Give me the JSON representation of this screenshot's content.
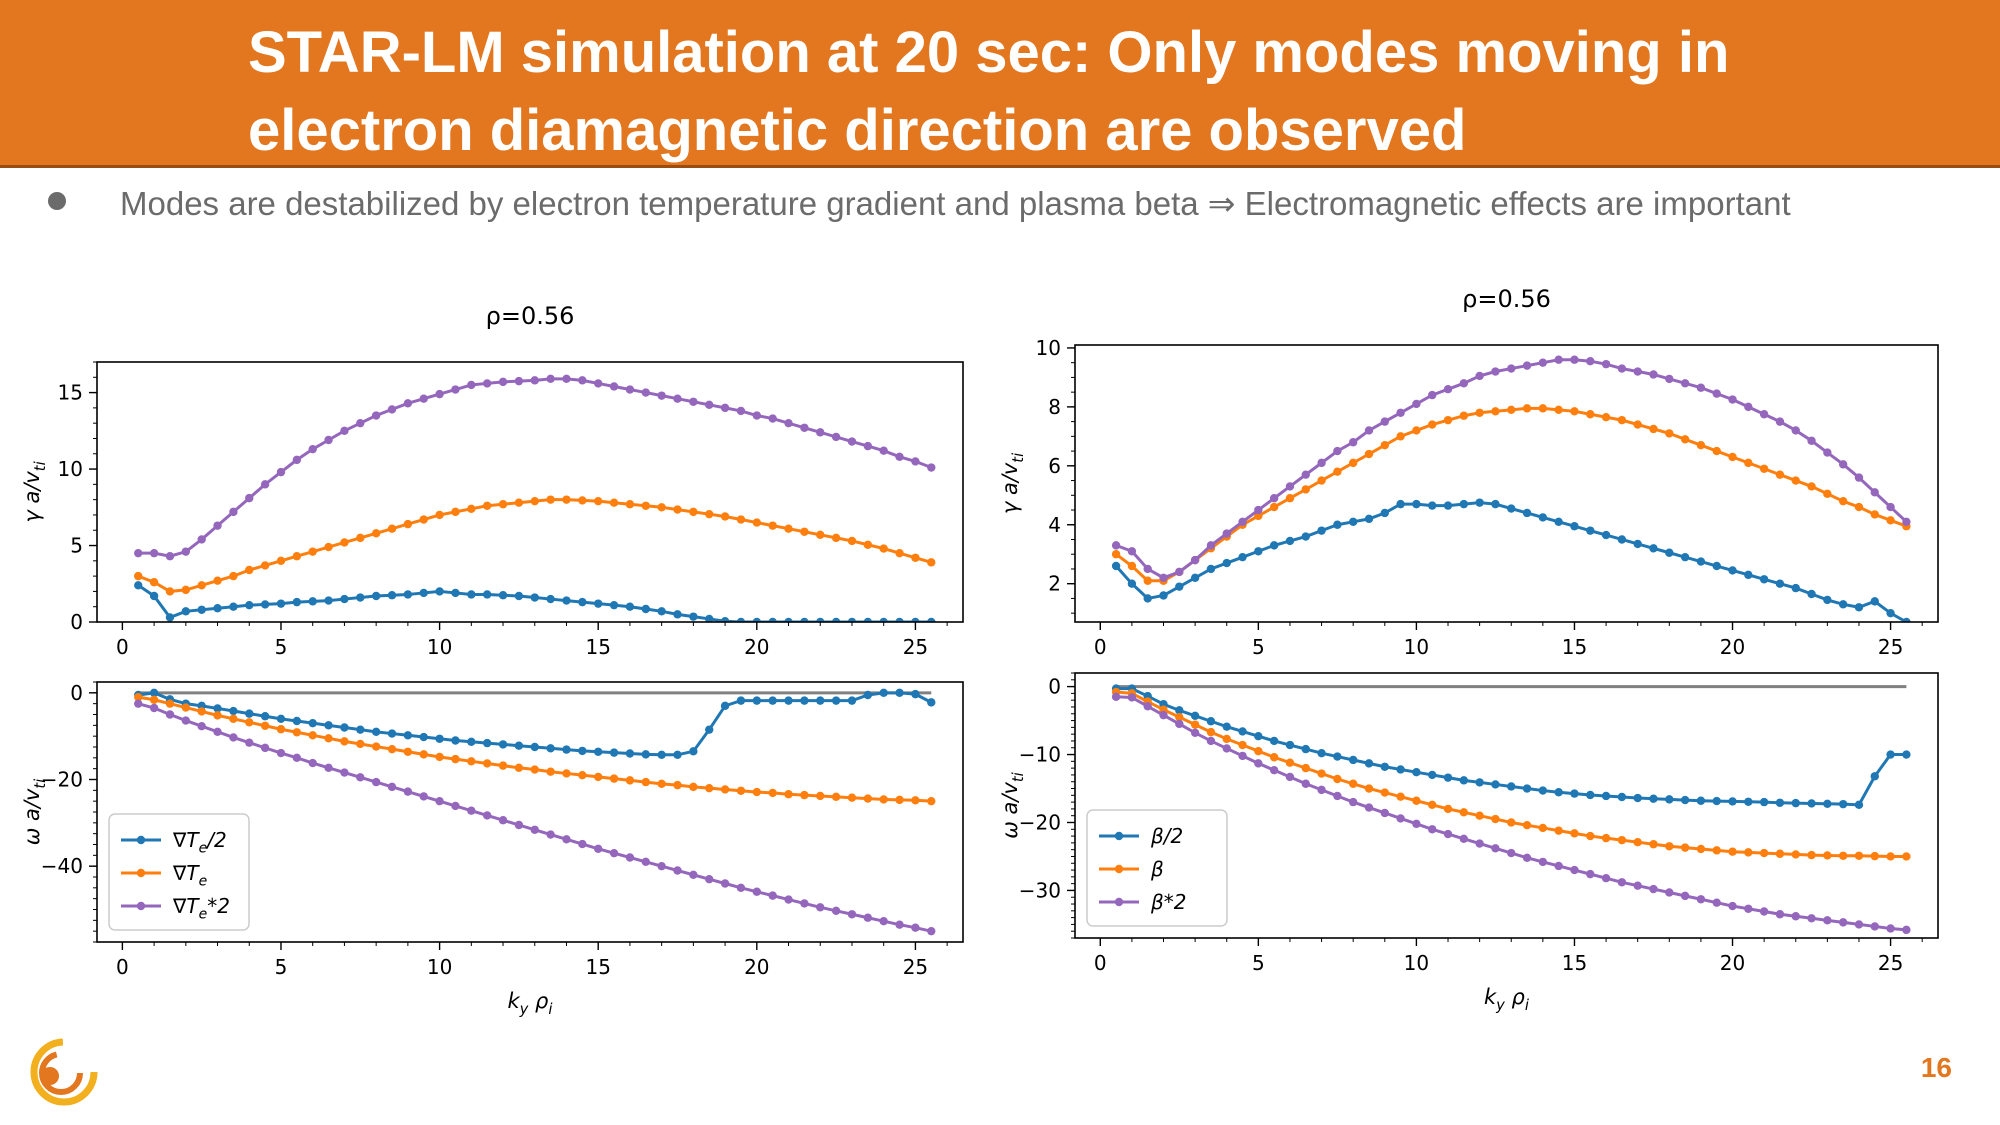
{
  "slide": {
    "title": "STAR-LM simulation at 20 sec: Only modes moving in electron diamagnetic direction are observed",
    "bullet": "Modes are destabilized by electron temperature gradient and plasma beta ⇒ Electromagnetic effects are important",
    "page_number": "16",
    "accent_color": "#e2771f"
  },
  "chart_data": [
    {
      "id": "left-growth",
      "type": "line",
      "title": "ρ=0.56",
      "xlabel": "",
      "ylabel": "γ a/v_ti",
      "xlim": [
        -0.8,
        26.5
      ],
      "ylim": [
        0,
        17
      ],
      "xticks": [
        0,
        5,
        10,
        15,
        20,
        25
      ],
      "yticks": [
        0,
        5,
        10,
        15
      ],
      "x": [
        0.5,
        1.0,
        1.5,
        2.0,
        2.5,
        3.0,
        3.5,
        4.0,
        4.5,
        5.0,
        5.5,
        6.0,
        6.5,
        7.0,
        7.5,
        8.0,
        8.5,
        9.0,
        9.5,
        10.0,
        10.5,
        11.0,
        11.5,
        12.0,
        12.5,
        13.0,
        13.5,
        14.0,
        14.5,
        15.0,
        15.5,
        16.0,
        16.5,
        17.0,
        17.5,
        18.0,
        18.5,
        19.0,
        19.5,
        20.0,
        20.5,
        21.0,
        21.5,
        22.0,
        22.5,
        23.0,
        23.5,
        24.0,
        24.5,
        25.0,
        25.5
      ],
      "series": [
        {
          "name": "∇T_e/2",
          "color": "#1f77b4",
          "values": [
            2.4,
            1.7,
            0.3,
            0.7,
            0.8,
            0.9,
            1.0,
            1.1,
            1.15,
            1.2,
            1.3,
            1.35,
            1.4,
            1.5,
            1.6,
            1.7,
            1.75,
            1.8,
            1.9,
            2.0,
            1.9,
            1.8,
            1.8,
            1.75,
            1.7,
            1.6,
            1.5,
            1.4,
            1.3,
            1.2,
            1.1,
            1.0,
            0.85,
            0.7,
            0.5,
            0.35,
            0.2,
            0.05,
            0,
            0,
            0,
            0,
            0,
            0,
            0,
            0,
            0,
            0,
            0,
            0,
            0
          ]
        },
        {
          "name": "∇T_e",
          "color": "#ff7f0e",
          "values": [
            3.0,
            2.6,
            2.0,
            2.1,
            2.4,
            2.7,
            3.0,
            3.4,
            3.7,
            4.0,
            4.3,
            4.6,
            4.9,
            5.2,
            5.5,
            5.8,
            6.1,
            6.4,
            6.7,
            7.0,
            7.2,
            7.4,
            7.6,
            7.7,
            7.8,
            7.9,
            8.0,
            8.0,
            7.95,
            7.9,
            7.8,
            7.7,
            7.6,
            7.5,
            7.35,
            7.2,
            7.05,
            6.9,
            6.7,
            6.5,
            6.3,
            6.1,
            5.9,
            5.7,
            5.5,
            5.3,
            5.05,
            4.8,
            4.5,
            4.2,
            3.9
          ]
        },
        {
          "name": "∇T_e*2",
          "color": "#9467bd",
          "values": [
            4.5,
            4.5,
            4.3,
            4.6,
            5.4,
            6.3,
            7.2,
            8.1,
            9.0,
            9.8,
            10.6,
            11.3,
            11.9,
            12.5,
            13.0,
            13.5,
            13.9,
            14.3,
            14.6,
            14.9,
            15.2,
            15.5,
            15.6,
            15.7,
            15.75,
            15.8,
            15.9,
            15.9,
            15.8,
            15.6,
            15.4,
            15.2,
            15.0,
            14.8,
            14.6,
            14.4,
            14.2,
            14.0,
            13.8,
            13.5,
            13.3,
            13.0,
            12.7,
            12.4,
            12.1,
            11.8,
            11.5,
            11.2,
            10.8,
            10.5,
            10.1
          ]
        }
      ]
    },
    {
      "id": "left-frequency",
      "type": "line",
      "title": "",
      "xlabel": "k_y ρ_i",
      "ylabel": "ω a/v_ti",
      "xlim": [
        -0.8,
        26.5
      ],
      "ylim": [
        -57.5,
        2.5
      ],
      "xticks": [
        0,
        5,
        10,
        15,
        20,
        25
      ],
      "yticks": [
        0,
        -20,
        -40
      ],
      "legend_position": "lower-left",
      "reference_line": {
        "y": 0,
        "x_range": [
          0.5,
          25.5
        ],
        "color": "#808080"
      },
      "x": [
        0.5,
        1.0,
        1.5,
        2.0,
        2.5,
        3.0,
        3.5,
        4.0,
        4.5,
        5.0,
        5.5,
        6.0,
        6.5,
        7.0,
        7.5,
        8.0,
        8.5,
        9.0,
        9.5,
        10.0,
        10.5,
        11.0,
        11.5,
        12.0,
        12.5,
        13.0,
        13.5,
        14.0,
        14.5,
        15.0,
        15.5,
        16.0,
        16.5,
        17.0,
        17.5,
        18.0,
        18.5,
        19.0,
        19.5,
        20.0,
        20.5,
        21.0,
        21.5,
        22.0,
        22.5,
        23.0,
        23.5,
        24.0,
        24.5,
        25.0,
        25.5
      ],
      "series": [
        {
          "name": "∇T_e/2",
          "color": "#1f77b4",
          "values": [
            -0.5,
            0.0,
            -1.5,
            -2.5,
            -3.0,
            -3.6,
            -4.2,
            -4.8,
            -5.4,
            -6.0,
            -6.5,
            -7.0,
            -7.5,
            -8.0,
            -8.5,
            -9.0,
            -9.4,
            -9.8,
            -10.2,
            -10.6,
            -11.0,
            -11.3,
            -11.6,
            -11.9,
            -12.2,
            -12.5,
            -12.8,
            -13.1,
            -13.4,
            -13.6,
            -13.8,
            -14.0,
            -14.2,
            -14.3,
            -14.3,
            -13.5,
            -8.5,
            -3.0,
            -1.8,
            -1.8,
            -1.8,
            -1.8,
            -1.8,
            -1.8,
            -1.8,
            -1.8,
            -0.5,
            0.0,
            0.0,
            -0.3,
            -2.2
          ]
        },
        {
          "name": "∇T_e",
          "color": "#ff7f0e",
          "values": [
            -1.0,
            -1.6,
            -2.5,
            -3.4,
            -4.3,
            -5.2,
            -6.0,
            -6.8,
            -7.6,
            -8.4,
            -9.1,
            -9.8,
            -10.5,
            -11.2,
            -11.8,
            -12.4,
            -13.0,
            -13.6,
            -14.2,
            -14.8,
            -15.3,
            -15.8,
            -16.3,
            -16.8,
            -17.3,
            -17.7,
            -18.2,
            -18.6,
            -19.0,
            -19.4,
            -19.8,
            -20.2,
            -20.6,
            -21.0,
            -21.3,
            -21.7,
            -22.0,
            -22.3,
            -22.6,
            -22.9,
            -23.1,
            -23.4,
            -23.6,
            -23.8,
            -24.0,
            -24.2,
            -24.4,
            -24.6,
            -24.7,
            -24.8,
            -25.0
          ]
        },
        {
          "name": "∇T_e*2",
          "color": "#9467bd",
          "values": [
            -2.5,
            -3.5,
            -5.0,
            -6.4,
            -7.7,
            -9.0,
            -10.3,
            -11.5,
            -12.7,
            -13.9,
            -15.0,
            -16.2,
            -17.3,
            -18.4,
            -19.5,
            -20.6,
            -21.7,
            -22.8,
            -23.9,
            -25.0,
            -26.1,
            -27.2,
            -28.3,
            -29.4,
            -30.5,
            -31.6,
            -32.7,
            -33.8,
            -34.9,
            -36.0,
            -37.0,
            -38.0,
            -39.0,
            -40.0,
            -41.0,
            -42.0,
            -43.0,
            -44.0,
            -45.0,
            -45.9,
            -46.8,
            -47.7,
            -48.6,
            -49.5,
            -50.3,
            -51.1,
            -51.9,
            -52.7,
            -53.5,
            -54.2,
            -55.0
          ]
        }
      ]
    },
    {
      "id": "right-growth",
      "type": "line",
      "title": "ρ=0.56",
      "xlabel": "",
      "ylabel": "γ a/v_ti",
      "xlim": [
        -0.8,
        26.5
      ],
      "ylim": [
        0.7,
        10.1
      ],
      "xticks": [
        0,
        5,
        10,
        15,
        20,
        25
      ],
      "yticks": [
        2,
        4,
        6,
        8,
        10
      ],
      "x": [
        0.5,
        1.0,
        1.5,
        2.0,
        2.5,
        3.0,
        3.5,
        4.0,
        4.5,
        5.0,
        5.5,
        6.0,
        6.5,
        7.0,
        7.5,
        8.0,
        8.5,
        9.0,
        9.5,
        10.0,
        10.5,
        11.0,
        11.5,
        12.0,
        12.5,
        13.0,
        13.5,
        14.0,
        14.5,
        15.0,
        15.5,
        16.0,
        16.5,
        17.0,
        17.5,
        18.0,
        18.5,
        19.0,
        19.5,
        20.0,
        20.5,
        21.0,
        21.5,
        22.0,
        22.5,
        23.0,
        23.5,
        24.0,
        24.5,
        25.0,
        25.5
      ],
      "series": [
        {
          "name": "β/2",
          "color": "#1f77b4",
          "values": [
            2.6,
            2.0,
            1.5,
            1.6,
            1.9,
            2.2,
            2.5,
            2.7,
            2.9,
            3.1,
            3.3,
            3.45,
            3.6,
            3.8,
            4.0,
            4.1,
            4.2,
            4.4,
            4.7,
            4.7,
            4.65,
            4.65,
            4.7,
            4.75,
            4.7,
            4.55,
            4.4,
            4.25,
            4.1,
            3.95,
            3.8,
            3.65,
            3.5,
            3.35,
            3.2,
            3.05,
            2.9,
            2.75,
            2.6,
            2.45,
            2.3,
            2.15,
            2.0,
            1.85,
            1.65,
            1.45,
            1.3,
            1.2,
            1.4,
            1.0,
            0.7
          ]
        },
        {
          "name": "β",
          "color": "#ff7f0e",
          "values": [
            3.0,
            2.6,
            2.1,
            2.1,
            2.4,
            2.8,
            3.2,
            3.6,
            4.0,
            4.3,
            4.6,
            4.9,
            5.2,
            5.5,
            5.8,
            6.1,
            6.4,
            6.7,
            7.0,
            7.2,
            7.4,
            7.55,
            7.7,
            7.8,
            7.85,
            7.9,
            7.95,
            7.95,
            7.9,
            7.85,
            7.75,
            7.65,
            7.55,
            7.4,
            7.25,
            7.1,
            6.9,
            6.7,
            6.5,
            6.3,
            6.1,
            5.9,
            5.7,
            5.5,
            5.3,
            5.05,
            4.8,
            4.6,
            4.35,
            4.15,
            3.95
          ]
        },
        {
          "name": "β*2",
          "color": "#9467bd",
          "values": [
            3.3,
            3.1,
            2.5,
            2.2,
            2.4,
            2.8,
            3.3,
            3.7,
            4.1,
            4.5,
            4.9,
            5.3,
            5.7,
            6.1,
            6.5,
            6.8,
            7.2,
            7.5,
            7.8,
            8.1,
            8.4,
            8.6,
            8.8,
            9.05,
            9.2,
            9.3,
            9.4,
            9.5,
            9.6,
            9.6,
            9.55,
            9.45,
            9.3,
            9.2,
            9.1,
            8.95,
            8.8,
            8.65,
            8.45,
            8.25,
            8.0,
            7.75,
            7.5,
            7.2,
            6.85,
            6.45,
            6.05,
            5.6,
            5.1,
            4.6,
            4.1
          ]
        }
      ]
    },
    {
      "id": "right-frequency",
      "type": "line",
      "title": "",
      "xlabel": "k_y ρ_i",
      "ylabel": "ω a/v_ti",
      "xlim": [
        -0.8,
        26.5
      ],
      "ylim": [
        -37,
        2
      ],
      "xticks": [
        0,
        5,
        10,
        15,
        20,
        25
      ],
      "yticks": [
        0,
        -10,
        -20,
        -30
      ],
      "legend_position": "lower-left",
      "reference_line": {
        "y": 0,
        "x_range": [
          0.5,
          25.5
        ],
        "color": "#808080"
      },
      "x": [
        0.5,
        1.0,
        1.5,
        2.0,
        2.5,
        3.0,
        3.5,
        4.0,
        4.5,
        5.0,
        5.5,
        6.0,
        6.5,
        7.0,
        7.5,
        8.0,
        8.5,
        9.0,
        9.5,
        10.0,
        10.5,
        11.0,
        11.5,
        12.0,
        12.5,
        13.0,
        13.5,
        14.0,
        14.5,
        15.0,
        15.5,
        16.0,
        16.5,
        17.0,
        17.5,
        18.0,
        18.5,
        19.0,
        19.5,
        20.0,
        20.5,
        21.0,
        21.5,
        22.0,
        22.5,
        23.0,
        23.5,
        24.0,
        24.5,
        25.0,
        25.5
      ],
      "series": [
        {
          "name": "β/2",
          "color": "#1f77b4",
          "values": [
            -0.3,
            -0.3,
            -1.4,
            -2.6,
            -3.5,
            -4.3,
            -5.1,
            -5.9,
            -6.6,
            -7.3,
            -8.0,
            -8.6,
            -9.2,
            -9.8,
            -10.3,
            -10.8,
            -11.3,
            -11.8,
            -12.2,
            -12.6,
            -13.0,
            -13.4,
            -13.8,
            -14.1,
            -14.4,
            -14.7,
            -15.0,
            -15.3,
            -15.55,
            -15.75,
            -15.95,
            -16.1,
            -16.25,
            -16.4,
            -16.5,
            -16.6,
            -16.7,
            -16.8,
            -16.85,
            -16.9,
            -16.95,
            -17.0,
            -17.1,
            -17.15,
            -17.2,
            -17.25,
            -17.3,
            -17.4,
            -13.2,
            -10.0,
            -10.0
          ]
        },
        {
          "name": "β",
          "color": "#ff7f0e",
          "values": [
            -0.8,
            -1.0,
            -2.2,
            -3.4,
            -4.5,
            -5.6,
            -6.7,
            -7.7,
            -8.6,
            -9.5,
            -10.4,
            -11.2,
            -12.0,
            -12.8,
            -13.6,
            -14.3,
            -15.0,
            -15.6,
            -16.2,
            -16.8,
            -17.4,
            -18.0,
            -18.5,
            -19.0,
            -19.5,
            -20.0,
            -20.4,
            -20.8,
            -21.2,
            -21.6,
            -22.0,
            -22.3,
            -22.6,
            -22.9,
            -23.2,
            -23.5,
            -23.7,
            -23.9,
            -24.1,
            -24.3,
            -24.4,
            -24.5,
            -24.6,
            -24.7,
            -24.8,
            -24.85,
            -24.9,
            -24.9,
            -24.95,
            -25.0,
            -25.0
          ]
        },
        {
          "name": "β*2",
          "color": "#9467bd",
          "values": [
            -1.5,
            -1.6,
            -2.9,
            -4.2,
            -5.5,
            -6.8,
            -8.0,
            -9.1,
            -10.2,
            -11.3,
            -12.3,
            -13.3,
            -14.3,
            -15.2,
            -16.1,
            -17.0,
            -17.8,
            -18.6,
            -19.4,
            -20.2,
            -21.0,
            -21.7,
            -22.4,
            -23.1,
            -23.8,
            -24.5,
            -25.2,
            -25.8,
            -26.4,
            -27.0,
            -27.6,
            -28.2,
            -28.8,
            -29.3,
            -29.8,
            -30.3,
            -30.8,
            -31.3,
            -31.8,
            -32.3,
            -32.7,
            -33.1,
            -33.5,
            -33.8,
            -34.1,
            -34.4,
            -34.7,
            -35.0,
            -35.3,
            -35.6,
            -35.8
          ]
        }
      ]
    }
  ]
}
